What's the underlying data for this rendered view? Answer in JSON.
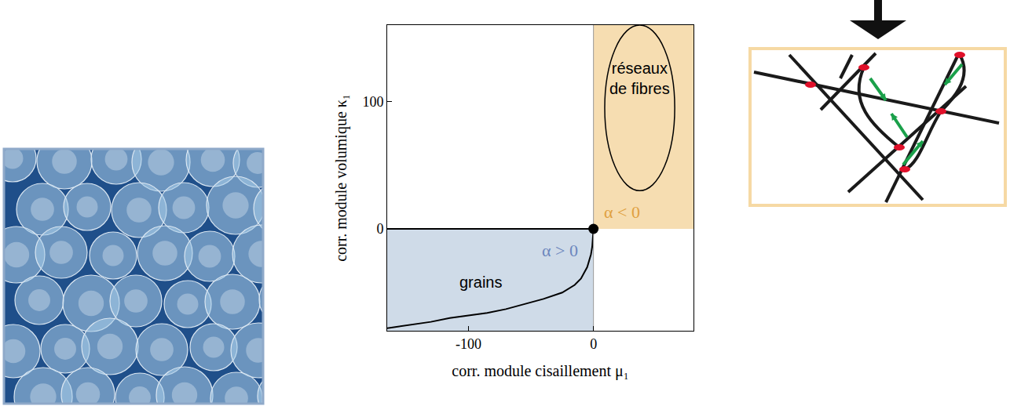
{
  "chart_data": {
    "type": "line",
    "xlabel": "corr. module cisaillement μ₁",
    "ylabel": "corr. module volumique κ₁",
    "xlim": [
      -165,
      80
    ],
    "ylim": [
      -80,
      160
    ],
    "xticks": [
      -100,
      0
    ],
    "yticks": [
      0,
      100
    ],
    "grid": false,
    "regions": [
      {
        "color": "#cfdbe8",
        "x": [
          -165,
          0
        ],
        "y": [
          -80,
          0
        ]
      },
      {
        "color": "#f6ddb1",
        "x": [
          0,
          80
        ],
        "y": [
          0,
          160
        ]
      }
    ],
    "ellipse": {
      "color": "#000000",
      "x": [
        9,
        65
      ],
      "y": [
        30,
        160
      ]
    },
    "series": [
      {
        "color": "#000000",
        "line_style": "solid",
        "x": [
          0,
          -1,
          -2,
          -5,
          -10,
          -15,
          -25,
          -40,
          -55,
          -70,
          -85,
          -100,
          -115,
          -130,
          -150,
          -165
        ],
        "values": [
          0,
          -14,
          -20,
          -30,
          -39,
          -44,
          -50,
          -55,
          -59,
          -63,
          -66,
          -68,
          -70,
          -73,
          -76,
          -78
        ]
      },
      {
        "color": "#000000",
        "line_style": "solid",
        "x": [
          -165,
          0
        ],
        "values": [
          0,
          0
        ]
      },
      {
        "color": "#999999",
        "line_style": "solid",
        "x": [
          0,
          0
        ],
        "values": [
          -80,
          160
        ]
      }
    ],
    "point": {
      "color": "#000000",
      "x": 0,
      "y": 0
    },
    "annotations": [
      {
        "text": "grains",
        "x": -90,
        "y": -42,
        "color": "#000000"
      },
      {
        "text": "réseaux de fibres",
        "x": 37,
        "y": 118,
        "color": "#000000"
      },
      {
        "text": "α > 0",
        "x": -27,
        "y": -17,
        "color": "#6b86bd"
      },
      {
        "text": "α < 0",
        "x": 23,
        "y": 13,
        "color": "#e0a040"
      }
    ]
  }
}
